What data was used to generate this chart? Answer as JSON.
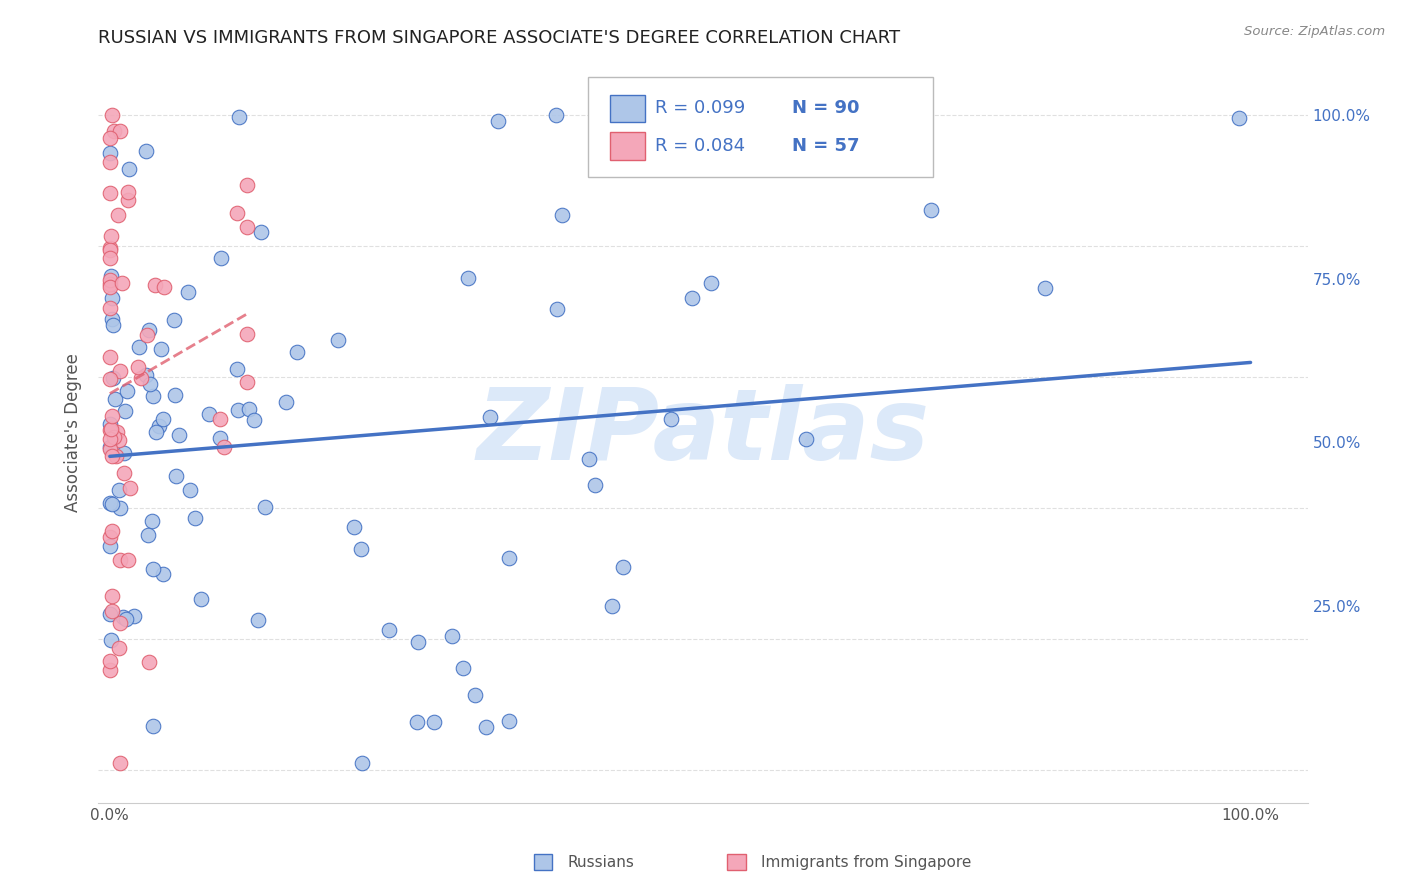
{
  "title": "RUSSIAN VS IMMIGRANTS FROM SINGAPORE ASSOCIATE'S DEGREE CORRELATION CHART",
  "source": "Source: ZipAtlas.com",
  "ylabel": "Associate's Degree",
  "legend_r_russian": "R = 0.099",
  "legend_n_russian": "N = 90",
  "legend_r_singapore": "R = 0.084",
  "legend_n_singapore": "N = 57",
  "russian_fill": "#aec6e8",
  "russian_edge": "#4472c4",
  "singapore_fill": "#f4a7b9",
  "singapore_edge": "#e06070",
  "trendline_russian_color": "#4472c4",
  "trendline_singapore_color": "#e06070",
  "watermark": "ZIPatlas",
  "watermark_color": "#a8c8f0",
  "grid_color": "#e0e0e0",
  "right_tick_color": "#4472c4",
  "title_color": "#222222",
  "source_color": "#888888",
  "label_color": "#555555",
  "xtick_labels": [
    "0.0%",
    "100.0%"
  ],
  "xtick_vals": [
    0.0,
    1.0
  ],
  "ytick_vals": [
    0.25,
    0.5,
    0.75,
    1.0
  ],
  "ytick_labels": [
    "25.0%",
    "50.0%",
    "75.0%",
    "100.0%"
  ],
  "xlim": [
    -0.01,
    1.05
  ],
  "ylim": [
    -0.05,
    1.08
  ]
}
